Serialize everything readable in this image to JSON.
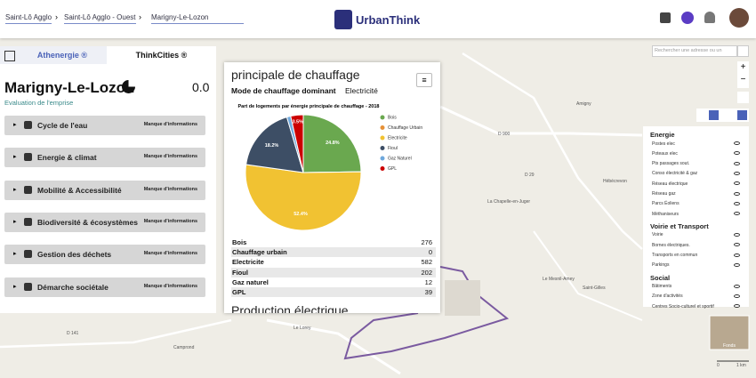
{
  "header": {
    "breadcrumbs": [
      "Saint-Lô Agglo",
      "Saint-Lô Agglo - Ouest",
      "Marigny-Le-Lozon"
    ],
    "logo": "UrbanThink"
  },
  "left_panel": {
    "tabs": [
      "Athenergie ®",
      "ThinkCities ®"
    ],
    "title": "Marigny-Le-Lozon",
    "score": "0.0",
    "subtitle": "Evaluation de l'emprise",
    "sections": [
      {
        "name": "Cycle de l'eau",
        "status": "Manque d'informations"
      },
      {
        "name": "Energie & climat",
        "status": "Manque d'informations"
      },
      {
        "name": "Mobilité & Accessibilité",
        "status": "Manque d'informations"
      },
      {
        "name": "Biodiversité & écosystèmes",
        "status": "Manque d'informations"
      },
      {
        "name": "Gestion des déchets",
        "status": "Manque d'informations"
      },
      {
        "name": "Démarche sociétale",
        "status": "Manque d'informations"
      }
    ]
  },
  "popup": {
    "heading": "principale de chauffage",
    "mode_label": "Mode de chauffage dominant",
    "mode_value": "Electricité",
    "chart_data": {
      "type": "pie",
      "title": "Part de logements par énergie principale de chauffage - 2018",
      "categories": [
        "Bois",
        "Chauffage Urbain",
        "Electricite",
        "Fioul",
        "Gaz Naturel",
        "GPL"
      ],
      "values": [
        24.8,
        0,
        52.4,
        18.2,
        1.1,
        3.5
      ],
      "value_labels": [
        "24.8%",
        null,
        "52.4%",
        "18.2%",
        null,
        "3.5%"
      ],
      "colors": [
        "#6aa84f",
        "#e69138",
        "#f1c232",
        "#3d4e65",
        "#6fa8dc",
        "#cc0000"
      ]
    },
    "table": {
      "rows": [
        [
          "Bois",
          "276"
        ],
        [
          "Chauffage urbain",
          "0"
        ],
        [
          "Electricite",
          "582"
        ],
        [
          "Fioul",
          "202"
        ],
        [
          "Gaz naturel",
          "12"
        ],
        [
          "GPL",
          "39"
        ]
      ]
    },
    "next_heading": "Production électrique"
  },
  "right_panel": {
    "search_placeholder": "Rechercher une adresse ou un",
    "groups": [
      {
        "name": "Energie",
        "items": [
          "Postes elec",
          "Poteaux elec",
          "Pts passages sout.",
          "Conso électricité & gaz",
          "Réseau électrique",
          "Réseau gaz",
          "Parcs Éoliens",
          "Méthaniseurs"
        ]
      },
      {
        "name": "Voirie et Transport",
        "items": [
          "Voirie",
          "Bornes électriques.",
          "Transports en commun",
          "Parkings"
        ]
      },
      {
        "name": "Social",
        "items": [
          "Bâtiments",
          "Zone d'activités",
          "Centres Socio-culturel et sportif"
        ]
      }
    ],
    "minimap": "Fonds",
    "scale": [
      "0",
      "1 km"
    ]
  },
  "map": {
    "labels": [
      "D 900",
      "La Chapelle-en-Juger",
      "Le Mesnil-Amey",
      "Hébécrevon",
      "Saint-Gilles",
      "Amigny",
      "Le Lorey",
      "Camprond",
      "D 29",
      "D 141"
    ]
  }
}
